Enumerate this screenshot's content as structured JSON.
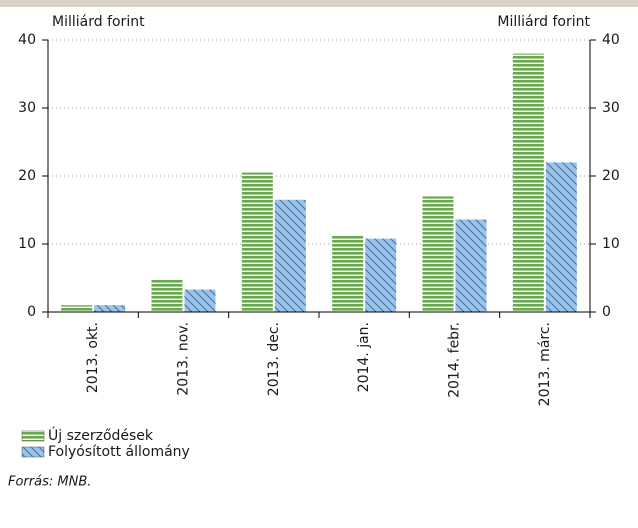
{
  "chart_data": {
    "type": "bar",
    "y_label": "Milliárd forint",
    "y2_label": "Milliárd forint",
    "categories": [
      "2013. okt.",
      "2013. nov.",
      "2013. dec.",
      "2014. jan.",
      "2014. febr.",
      "2013. márc."
    ],
    "series": [
      {
        "name": "Új szerződések",
        "color": "#6aa84f",
        "values": [
          1,
          4.9,
          20.5,
          11.3,
          17,
          38
        ]
      },
      {
        "name": "Folyósított állomány",
        "color": "#9dc3e6",
        "values": [
          1,
          3.3,
          16.5,
          10.8,
          13.6,
          22
        ]
      }
    ],
    "ylim": [
      0,
      40
    ],
    "yticks": [
      0,
      10,
      20,
      30,
      40
    ],
    "y2lim": [
      0,
      40
    ],
    "y2ticks": [
      0,
      10,
      20,
      30,
      40
    ],
    "grid": true,
    "source": "Forrás: MNB."
  }
}
